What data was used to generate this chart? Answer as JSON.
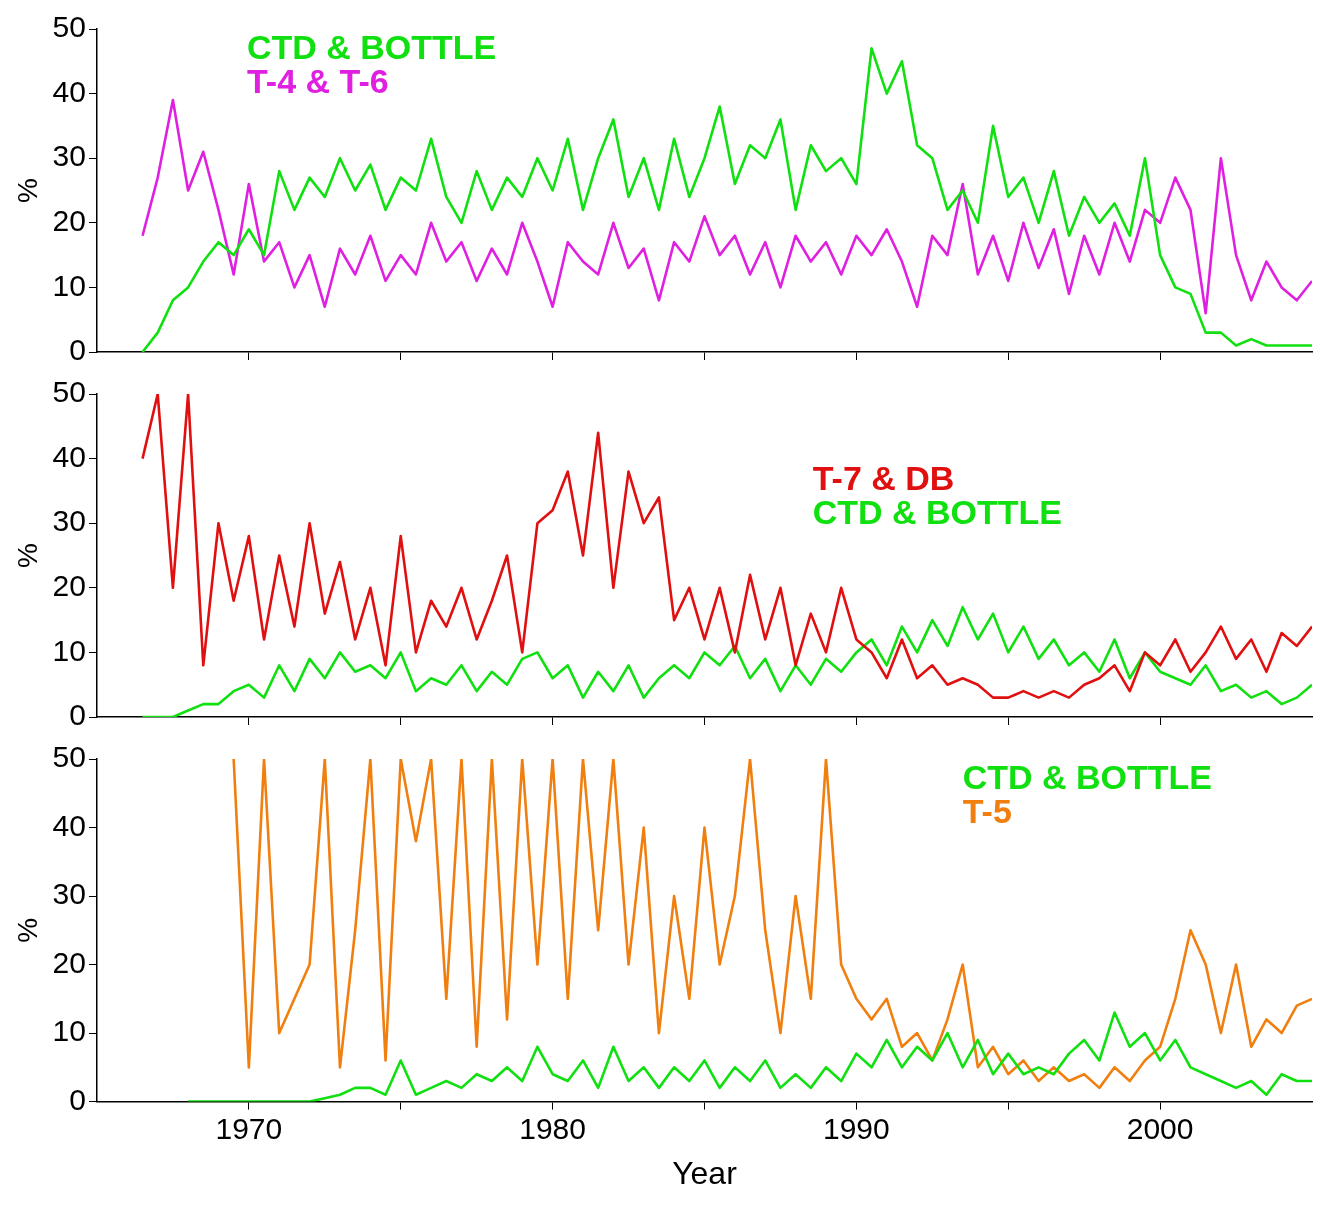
{
  "chart_data": [
    {
      "type": "line",
      "ylabel": "%",
      "xlim": [
        1965,
        2005
      ],
      "xticks": [
        1970,
        {
          "value": 1975,
          "label": null
        },
        1980,
        {
          "value": 1985,
          "label": null
        },
        1990,
        {
          "value": 1995,
          "label": null
        },
        2000
      ],
      "ylim": [
        0,
        50
      ],
      "yticks": [
        0,
        10,
        20,
        30,
        40,
        50
      ],
      "tick_labels": "y",
      "legend": "top left",
      "marker": "none",
      "line_style": "solid",
      "x": [
        1966.5,
        1967,
        1967.5,
        1968,
        1968.5,
        1969,
        1969.5,
        1970,
        1970.5,
        1971,
        1971.5,
        1972,
        1972.5,
        1973,
        1973.5,
        1974,
        1974.5,
        1975,
        1975.5,
        1976,
        1976.5,
        1977,
        1977.5,
        1978,
        1978.5,
        1979,
        1979.5,
        1980,
        1980.5,
        1981,
        1981.5,
        1982,
        1982.5,
        1983,
        1983.5,
        1984,
        1984.5,
        1985,
        1985.5,
        1986,
        1986.5,
        1987,
        1987.5,
        1988,
        1988.5,
        1989,
        1989.5,
        1990,
        1990.5,
        1991,
        1991.5,
        1992,
        1992.5,
        1993,
        1993.5,
        1994,
        1994.5,
        1995,
        1995.5,
        1996,
        1996.5,
        1997,
        1997.5,
        1998,
        1998.5,
        1999,
        1999.5,
        2000,
        2000.5,
        2001,
        2001.5,
        2002,
        2002.5,
        2003,
        2003.5,
        2004,
        2004.5,
        2005
      ],
      "series": [
        {
          "name": "CTD & BOTTLE",
          "color": "#10e010",
          "values": [
            0,
            3,
            8,
            10,
            14,
            17,
            15,
            19,
            15,
            28,
            22,
            27,
            24,
            30,
            25,
            29,
            22,
            27,
            25,
            33,
            24,
            20,
            28,
            22,
            27,
            24,
            30,
            25,
            33,
            22,
            30,
            36,
            24,
            30,
            22,
            33,
            24,
            30,
            38,
            26,
            32,
            30,
            36,
            22,
            32,
            28,
            30,
            26,
            47,
            40,
            45,
            32,
            30,
            22,
            25,
            20,
            35,
            24,
            27,
            20,
            28,
            18,
            24,
            20,
            23,
            18,
            30,
            15,
            10,
            9,
            3,
            3,
            1,
            2,
            1,
            1,
            1,
            1
          ]
        },
        {
          "name": "T-4 & T-6",
          "color": "#e020e0",
          "values": [
            18,
            27,
            39,
            25,
            31,
            22,
            12,
            26,
            14,
            17,
            10,
            15,
            7,
            16,
            12,
            18,
            11,
            15,
            12,
            20,
            14,
            17,
            11,
            16,
            12,
            20,
            14,
            7,
            17,
            14,
            12,
            20,
            13,
            16,
            8,
            17,
            14,
            21,
            15,
            18,
            12,
            17,
            10,
            18,
            14,
            17,
            12,
            18,
            15,
            19,
            14,
            7,
            18,
            15,
            26,
            12,
            18,
            11,
            20,
            13,
            19,
            9,
            18,
            12,
            20,
            14,
            22,
            20,
            27,
            22,
            6,
            30,
            15,
            8,
            14,
            10,
            8,
            11
          ]
        }
      ]
    },
    {
      "type": "line",
      "ylabel": "%",
      "xlim": [
        1965,
        2005
      ],
      "xticks": [
        1970,
        {
          "value": 1975,
          "label": null
        },
        1980,
        {
          "value": 1985,
          "label": null
        },
        1990,
        {
          "value": 1995,
          "label": null
        },
        2000
      ],
      "ylim": [
        0,
        50
      ],
      "yticks": [
        0,
        10,
        20,
        30,
        40,
        50
      ],
      "tick_labels": "y",
      "legend": "right",
      "marker": "none",
      "line_style": "solid",
      "x": [
        1966.5,
        1967,
        1967.5,
        1968,
        1968.5,
        1969,
        1969.5,
        1970,
        1970.5,
        1971,
        1971.5,
        1972,
        1972.5,
        1973,
        1973.5,
        1974,
        1974.5,
        1975,
        1975.5,
        1976,
        1976.5,
        1977,
        1977.5,
        1978,
        1978.5,
        1979,
        1979.5,
        1980,
        1980.5,
        1981,
        1981.5,
        1982,
        1982.5,
        1983,
        1983.5,
        1984,
        1984.5,
        1985,
        1985.5,
        1986,
        1986.5,
        1987,
        1987.5,
        1988,
        1988.5,
        1989,
        1989.5,
        1990,
        1990.5,
        1991,
        1991.5,
        1992,
        1992.5,
        1993,
        1993.5,
        1994,
        1994.5,
        1995,
        1995.5,
        1996,
        1996.5,
        1997,
        1997.5,
        1998,
        1998.5,
        1999,
        1999.5,
        2000,
        2000.5,
        2001,
        2001.5,
        2002,
        2002.5,
        2003,
        2003.5,
        2004,
        2004.5,
        2005
      ],
      "series": [
        {
          "name": "T-7 & DB",
          "color": "#e01010",
          "values": [
            40,
            50,
            20,
            50,
            8,
            30,
            18,
            28,
            12,
            25,
            14,
            30,
            16,
            24,
            12,
            20,
            8,
            28,
            10,
            18,
            14,
            20,
            12,
            18,
            25,
            10,
            30,
            32,
            38,
            25,
            44,
            20,
            38,
            30,
            34,
            15,
            20,
            12,
            20,
            10,
            22,
            12,
            20,
            8,
            16,
            10,
            20,
            12,
            10,
            6,
            12,
            6,
            8,
            5,
            6,
            5,
            3,
            3,
            4,
            3,
            4,
            3,
            5,
            6,
            8,
            4,
            10,
            8,
            12,
            7,
            10,
            14,
            9,
            12,
            7,
            13,
            11,
            14
          ]
        },
        {
          "name": "CTD & BOTTLE",
          "color": "#10e010",
          "values": [
            0,
            0,
            0,
            1,
            2,
            2,
            4,
            5,
            3,
            8,
            4,
            9,
            6,
            10,
            7,
            8,
            6,
            10,
            4,
            6,
            5,
            8,
            4,
            7,
            5,
            9,
            10,
            6,
            8,
            3,
            7,
            4,
            8,
            3,
            6,
            8,
            6,
            10,
            8,
            11,
            6,
            9,
            4,
            8,
            5,
            9,
            7,
            10,
            12,
            8,
            14,
            10,
            15,
            11,
            17,
            12,
            16,
            10,
            14,
            9,
            12,
            8,
            10,
            7,
            12,
            6,
            10,
            7,
            6,
            5,
            8,
            4,
            5,
            3,
            4,
            2,
            3,
            5
          ]
        }
      ]
    },
    {
      "type": "line",
      "xlabel": "Year",
      "ylabel": "%",
      "xlim": [
        1965,
        2005
      ],
      "xticks": [
        1970,
        {
          "value": 1975,
          "label": null
        },
        1980,
        {
          "value": 1985,
          "label": null
        },
        1990,
        {
          "value": 1995,
          "label": null
        },
        2000
      ],
      "ylim": [
        0,
        50
      ],
      "yticks": [
        0,
        10,
        20,
        30,
        40,
        50
      ],
      "legend": "top right",
      "marker": "none",
      "line_style": "solid",
      "series": [
        {
          "name": "CTD & BOTTLE",
          "color": "#10e010",
          "x": [
            1968,
            1968.5,
            1969,
            1969.5,
            1970,
            1970.5,
            1971,
            1971.5,
            1972,
            1972.5,
            1973,
            1973.5,
            1974,
            1974.5,
            1975,
            1975.5,
            1976,
            1976.5,
            1977,
            1977.5,
            1978,
            1978.5,
            1979,
            1979.5,
            1980,
            1980.5,
            1981,
            1981.5,
            1982,
            1982.5,
            1983,
            1983.5,
            1984,
            1984.5,
            1985,
            1985.5,
            1986,
            1986.5,
            1987,
            1987.5,
            1988,
            1988.5,
            1989,
            1989.5,
            1990,
            1990.5,
            1991,
            1991.5,
            1992,
            1992.5,
            1993,
            1993.5,
            1994,
            1994.5,
            1995,
            1995.5,
            1996,
            1996.5,
            1997,
            1997.5,
            1998,
            1998.5,
            1999,
            1999.5,
            2000,
            2000.5,
            2001,
            2001.5,
            2002,
            2002.5,
            2003,
            2003.5,
            2004,
            2004.5,
            2005
          ],
          "values": [
            0,
            0,
            0,
            0,
            0,
            0,
            0,
            0,
            0,
            0.5,
            1,
            2,
            2,
            1,
            6,
            1,
            2,
            3,
            2,
            4,
            3,
            5,
            3,
            8,
            4,
            3,
            6,
            2,
            8,
            3,
            5,
            2,
            5,
            3,
            6,
            2,
            5,
            3,
            6,
            2,
            4,
            2,
            5,
            3,
            7,
            5,
            9,
            5,
            8,
            6,
            10,
            5,
            9,
            4,
            7,
            4,
            5,
            4,
            7,
            9,
            6,
            13,
            8,
            10,
            6,
            9,
            5,
            4,
            3,
            2,
            3,
            1,
            4,
            3,
            3
          ]
        },
        {
          "name": "T-5",
          "color": "#f07f10",
          "x": [
            1969.5,
            1970,
            1970.5,
            1971,
            1971.5,
            1972,
            1972.5,
            1973,
            1973.5,
            1974,
            1974.5,
            1975,
            1975.5,
            1976,
            1976.5,
            1977,
            1977.5,
            1978,
            1978.5,
            1979,
            1979.5,
            1980,
            1980.5,
            1981,
            1981.5,
            1982,
            1982.5,
            1983,
            1983.5,
            1984,
            1984.5,
            1985,
            1985.5,
            1986,
            1986.5,
            1987,
            1987.5,
            1988,
            1988.5,
            1989,
            1989.5,
            1990,
            1990.5,
            1991,
            1991.5,
            1992,
            1992.5,
            1993,
            1993.5,
            1994,
            1994.5,
            1995,
            1995.5,
            1996,
            1996.5,
            1997,
            1997.5,
            1998,
            1998.5,
            1999,
            1999.5,
            2000,
            2000.5,
            2001,
            2001.5,
            2002,
            2002.5,
            2003,
            2003.5,
            2004,
            2004.5,
            2005
          ],
          "values": [
            50,
            5,
            50,
            10,
            15,
            20,
            50,
            5,
            25,
            50,
            6,
            50,
            38,
            50,
            15,
            50,
            8,
            50,
            12,
            50,
            20,
            50,
            15,
            50,
            25,
            50,
            20,
            40,
            10,
            30,
            15,
            40,
            20,
            30,
            50,
            25,
            10,
            30,
            15,
            50,
            20,
            15,
            12,
            15,
            8,
            10,
            6,
            12,
            20,
            5,
            8,
            4,
            6,
            3,
            5,
            3,
            4,
            2,
            5,
            3,
            6,
            8,
            15,
            25,
            20,
            10,
            20,
            8,
            12,
            10,
            14,
            15
          ]
        }
      ]
    }
  ]
}
